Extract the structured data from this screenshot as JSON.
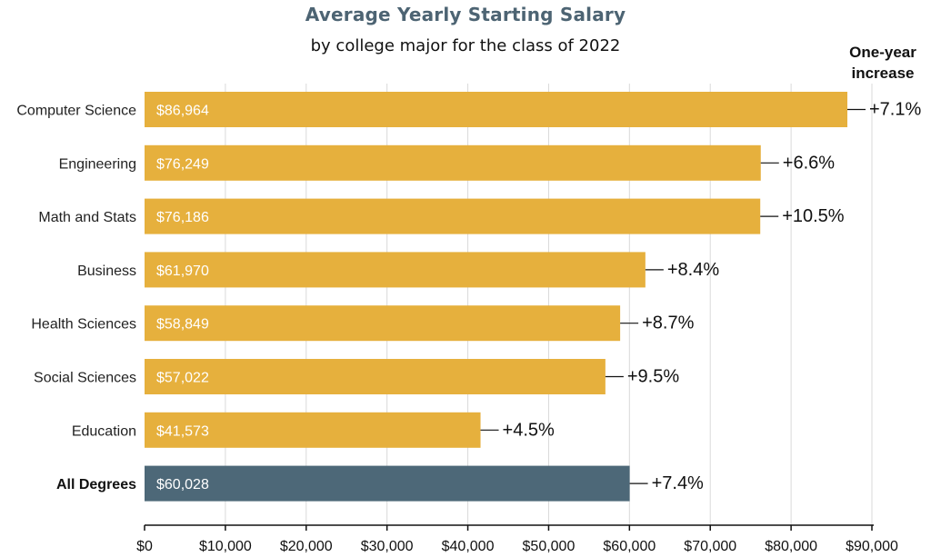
{
  "chart_data": {
    "type": "bar",
    "orientation": "horizontal",
    "title": "Average Yearly Starting Salary",
    "subtitle": "by college major for the class of 2022",
    "increase_header": [
      "One-year",
      "increase"
    ],
    "categories": [
      "Computer Science",
      "Engineering",
      "Math and Stats",
      "Business",
      "Health Sciences",
      "Social Sciences",
      "Education",
      "All Degrees"
    ],
    "values": [
      86964,
      76249,
      76186,
      61970,
      58849,
      57022,
      41573,
      60028
    ],
    "value_labels": [
      "$86,964",
      "$76,249",
      "$76,186",
      "$61,970",
      "$58,849",
      "$57,022",
      "$41,573",
      "$60,028"
    ],
    "increase_labels": [
      "+7.1%",
      "+6.6%",
      "+10.5%",
      "+8.4%",
      "+8.7%",
      "+9.5%",
      "+4.5%",
      "+7.4%"
    ],
    "highlight_category": "All Degrees",
    "xlim": [
      0,
      90000
    ],
    "xticks": [
      0,
      10000,
      20000,
      30000,
      40000,
      50000,
      60000,
      70000,
      80000,
      90000
    ],
    "xtick_labels": [
      "$0",
      "$10,000",
      "$20,000",
      "$30,000",
      "$40,000",
      "$50,000",
      "$60,000",
      "$70,000",
      "$80,000",
      "$90,000"
    ],
    "grid": true,
    "colors": {
      "bar": "#e6b03d",
      "highlight": "#4d6878"
    }
  }
}
